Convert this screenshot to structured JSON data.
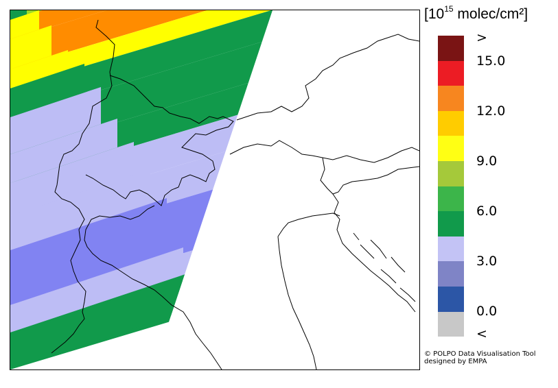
{
  "legend": {
    "unit_prefix": "[10",
    "unit_exponent": "15",
    "unit_suffix": " molec/cm²]",
    "colors": [
      "#7a1414",
      "#ec1c24",
      "#f7861f",
      "#ffcc00",
      "#ffff14",
      "#a5c93a",
      "#3cb54a",
      "#119a4b",
      "#c3c3f5",
      "#7f84c6",
      "#2c56a6",
      "#c8c8c8"
    ],
    "tick_labels": [
      ">",
      "15.0",
      "12.0",
      "9.0",
      "6.0",
      "3.0",
      "0.0",
      "<"
    ]
  },
  "credit": {
    "line1": "© POLPO Data Visualisation Tool",
    "line2": "designed by EMPA"
  },
  "map": {
    "swath_colors": {
      "orange": "#ff8c00",
      "yellow": "#ffff00",
      "lime": "#9bd82a",
      "green": "#119a4b",
      "lavender": "#bdbdf5",
      "periwinkle": "#8183f2"
    }
  }
}
